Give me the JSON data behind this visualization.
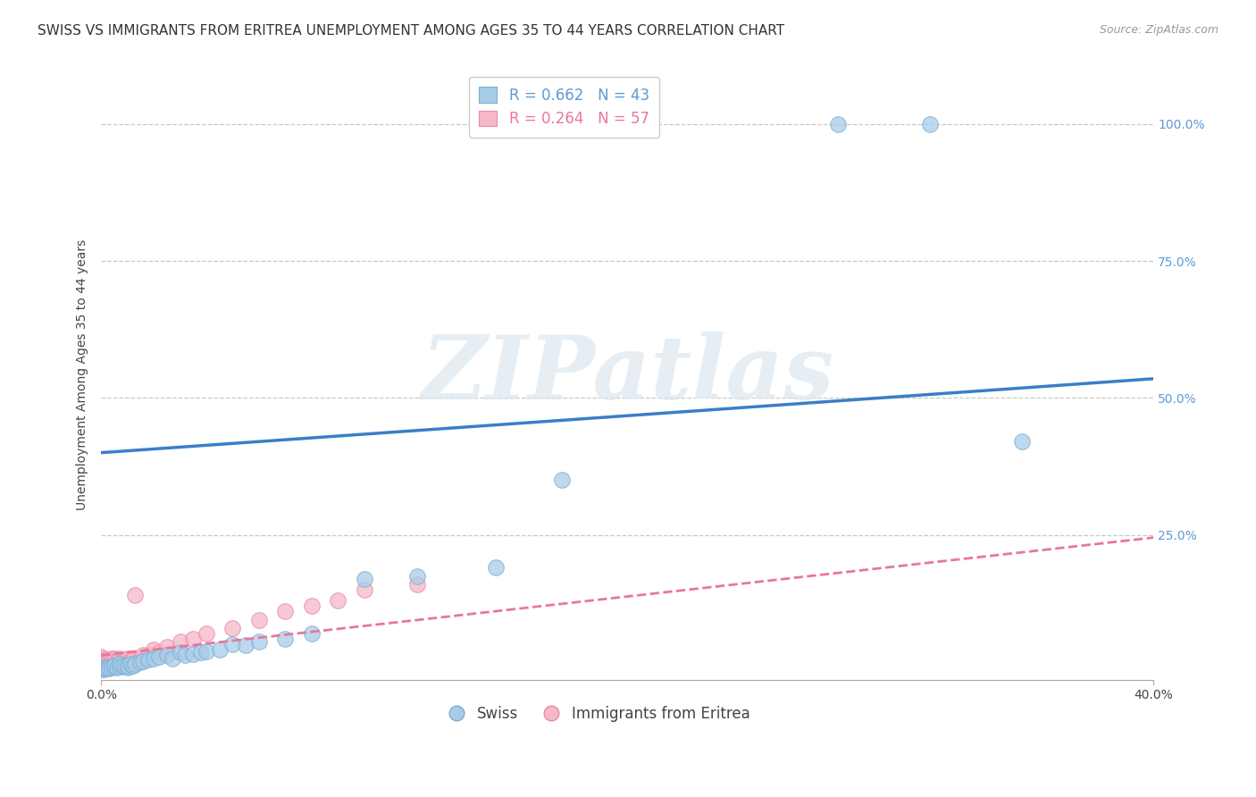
{
  "title": "SWISS VS IMMIGRANTS FROM ERITREA UNEMPLOYMENT AMONG AGES 35 TO 44 YEARS CORRELATION CHART",
  "source": "Source: ZipAtlas.com",
  "ylabel": "Unemployment Among Ages 35 to 44 years",
  "xlim": [
    0.0,
    0.4
  ],
  "ylim": [
    -0.015,
    1.1
  ],
  "xticks": [
    0.0,
    0.4
  ],
  "xticklabels": [
    "0.0%",
    "40.0%"
  ],
  "yticks_right": [
    0.25,
    0.5,
    0.75,
    1.0
  ],
  "yticklabels_right": [
    "25.0%",
    "50.0%",
    "75.0%",
    "100.0%"
  ],
  "grid_color": "#c8c8c8",
  "background_color": "#ffffff",
  "swiss_color": "#a8cce8",
  "eritrea_color": "#f5b8c8",
  "swiss_edge_color": "#7aafd4",
  "eritrea_edge_color": "#e888a8",
  "swiss_line_color": "#3a7ec8",
  "eritrea_line_color": "#e87898",
  "legend_swiss_label": "Swiss",
  "legend_eritrea_label": "Immigrants from Eritrea",
  "swiss_R": 0.662,
  "swiss_N": 43,
  "eritrea_R": 0.264,
  "eritrea_N": 57,
  "swiss_line_x0": 0.0,
  "swiss_line_y0": 0.4,
  "swiss_line_x1": 0.4,
  "swiss_line_y1": 0.535,
  "eritrea_line_x0": 0.0,
  "eritrea_line_y0": 0.03,
  "eritrea_line_x1": 0.4,
  "eritrea_line_y1": 0.245,
  "swiss_x": [
    0.001,
    0.001,
    0.002,
    0.003,
    0.003,
    0.004,
    0.005,
    0.005,
    0.006,
    0.007,
    0.007,
    0.008,
    0.009,
    0.01,
    0.01,
    0.011,
    0.012,
    0.013,
    0.015,
    0.016,
    0.018,
    0.02,
    0.022,
    0.025,
    0.027,
    0.03,
    0.032,
    0.035,
    0.038,
    0.04,
    0.045,
    0.05,
    0.055,
    0.06,
    0.07,
    0.08,
    0.1,
    0.12,
    0.15,
    0.175,
    0.28,
    0.315,
    0.35
  ],
  "swiss_y": [
    0.005,
    0.008,
    0.006,
    0.01,
    0.007,
    0.008,
    0.01,
    0.012,
    0.008,
    0.01,
    0.015,
    0.012,
    0.01,
    0.008,
    0.012,
    0.015,
    0.012,
    0.015,
    0.018,
    0.02,
    0.022,
    0.025,
    0.028,
    0.03,
    0.025,
    0.035,
    0.03,
    0.032,
    0.035,
    0.038,
    0.04,
    0.05,
    0.048,
    0.055,
    0.06,
    0.07,
    0.17,
    0.175,
    0.19,
    0.35,
    1.0,
    1.0,
    0.42
  ],
  "eritrea_x": [
    0.0,
    0.0,
    0.0,
    0.0,
    0.0,
    0.0,
    0.0,
    0.0,
    0.0,
    0.0,
    0.001,
    0.001,
    0.001,
    0.001,
    0.001,
    0.002,
    0.002,
    0.002,
    0.002,
    0.002,
    0.003,
    0.003,
    0.003,
    0.004,
    0.004,
    0.004,
    0.005,
    0.005,
    0.005,
    0.005,
    0.006,
    0.006,
    0.007,
    0.007,
    0.008,
    0.009,
    0.01,
    0.01,
    0.011,
    0.012,
    0.013,
    0.015,
    0.016,
    0.018,
    0.02,
    0.022,
    0.025,
    0.03,
    0.035,
    0.04,
    0.05,
    0.06,
    0.07,
    0.08,
    0.09,
    0.1,
    0.12
  ],
  "eritrea_y": [
    0.005,
    0.008,
    0.01,
    0.012,
    0.015,
    0.018,
    0.02,
    0.022,
    0.025,
    0.028,
    0.005,
    0.008,
    0.01,
    0.015,
    0.02,
    0.008,
    0.01,
    0.015,
    0.018,
    0.022,
    0.01,
    0.015,
    0.02,
    0.012,
    0.018,
    0.025,
    0.01,
    0.015,
    0.02,
    0.025,
    0.015,
    0.02,
    0.018,
    0.025,
    0.02,
    0.022,
    0.018,
    0.025,
    0.02,
    0.025,
    0.14,
    0.025,
    0.03,
    0.03,
    0.04,
    0.035,
    0.045,
    0.055,
    0.06,
    0.07,
    0.08,
    0.095,
    0.11,
    0.12,
    0.13,
    0.15,
    0.16
  ],
  "title_fontsize": 11,
  "axis_label_fontsize": 10,
  "tick_fontsize": 10,
  "legend_fontsize": 12,
  "source_fontsize": 9,
  "watermark_text": "ZIPatlas",
  "watermark_fontsize": 72,
  "watermark_color": "#dce8f0",
  "watermark_alpha": 0.7
}
